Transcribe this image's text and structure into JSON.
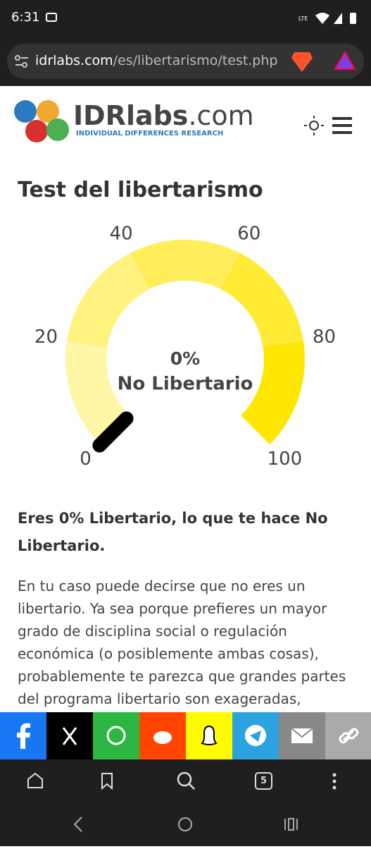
{
  "status_bar": {
    "time": "6:31",
    "network": "LTE"
  },
  "browser": {
    "url_host": "idrlabs.com",
    "url_path": "/es/libertarismo/test.php",
    "tab_count": "5"
  },
  "header": {
    "logo_name": "IDRlabs",
    "logo_suffix": ".com",
    "logo_tagline": "INDIVIDUAL DIFFERENCES RESEARCH"
  },
  "page": {
    "title": "Test del libertarismo",
    "result_heading": "Eres 0% Libertario, lo que te hace No Libertario.",
    "body": "En tu caso puede decirse que no eres un libertario. Ya sea porque prefieres un mayor grado de disciplina social o regulación económica (o posiblemente ambas cosas), probablemente te parezca que grandes partes del programa libertario son exageradas,"
  },
  "gauge": {
    "type": "gauge",
    "value": 0,
    "value_label": "0%",
    "category": "No Libertario",
    "lim": [
      0,
      100
    ],
    "ticks": [
      0,
      20,
      40,
      60,
      80,
      100
    ],
    "band_colors": [
      "#fff6a6",
      "#fff27e",
      "#ffee5a",
      "#ffea34",
      "#ffe600"
    ],
    "needle_color": "#000000"
  }
}
